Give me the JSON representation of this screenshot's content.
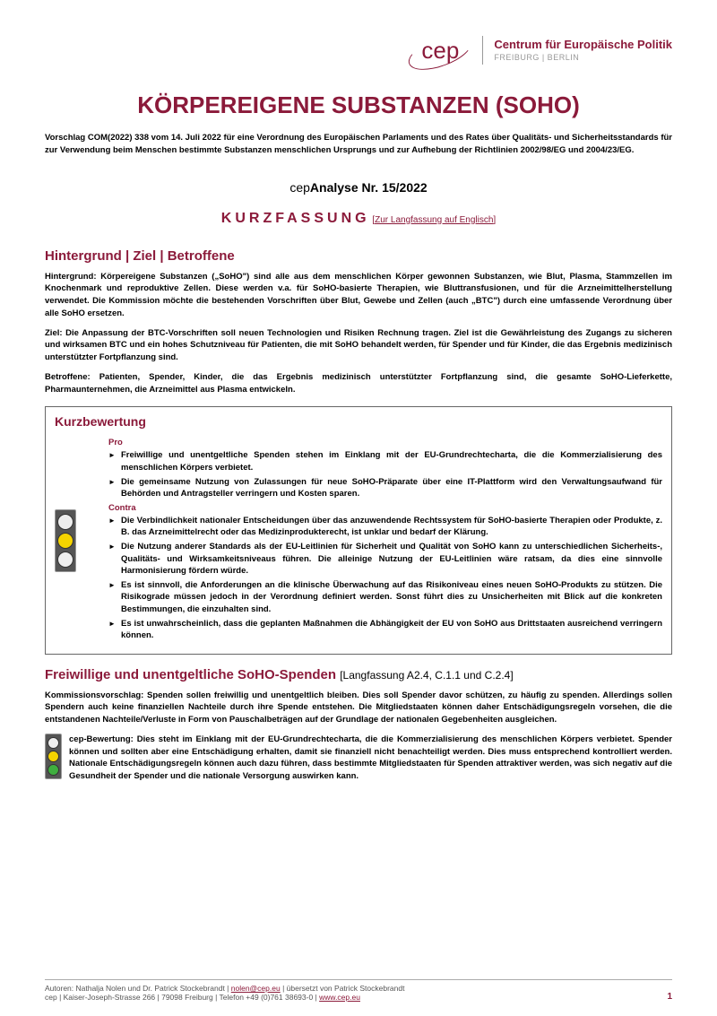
{
  "logo": {
    "brand": "cep",
    "name": "Centrum für Europäische Politik",
    "cities": "FREIBURG | BERLIN"
  },
  "title": "KÖRPEREIGENE SUBSTANZEN (SOHO)",
  "subtitle": "Vorschlag COM(2022) 338 vom 14. Juli 2022 für eine Verordnung des Europäischen Parlaments und des Rates über Qualitäts- und Sicherheitsstandards für zur Verwendung beim Menschen bestimmte Substanzen menschlichen Ursprungs und zur Aufhebung der Richtlinien 2002/98/EG und 2004/23/EG.",
  "analyse": {
    "prefix": "cep",
    "word": "Analyse",
    "nr": " Nr. 15/2022"
  },
  "kurzfassung": {
    "label": "KURZFASSUNG",
    "link": "[Zur Langfassung auf Englisch]"
  },
  "section1": {
    "heading": "Hintergrund | Ziel | Betroffene",
    "p1": "Hintergrund: Körpereigene Substanzen („SoHO\") sind alle aus dem menschlichen Körper gewonnen Substanzen, wie Blut, Plasma, Stammzellen im Knochenmark und reproduktive Zellen. Diese werden v.a. für SoHO-basierte Therapien, wie Bluttransfusionen, und für die Arzneimittelherstellung verwendet. Die Kommission möchte die bestehenden Vorschriften über Blut, Gewebe und Zellen (auch „BTC\") durch eine umfassende Verordnung über alle SoHO ersetzen.",
    "p2": "Ziel: Die Anpassung der BTC-Vorschriften soll neuen Technologien und Risiken Rechnung tragen. Ziel ist die Gewährleistung des Zugangs zu sicheren und wirksamen BTC und ein hohes Schutzniveau für Patienten, die mit SoHO behandelt werden, für Spender und für Kinder, die das Ergebnis medizinisch unterstützter Fortpflanzung sind.",
    "p3": "Betroffene: Patienten, Spender, Kinder, die das Ergebnis medizinisch unterstützter Fortpflanzung sind, die gesamte SoHO-Lieferkette, Pharmaunternehmen, die Arzneimittel aus Plasma entwickeln."
  },
  "eval": {
    "heading": "Kurzbewertung",
    "pro_label": "Pro",
    "contra_label": "Contra",
    "pro": [
      "Freiwillige und unentgeltliche Spenden stehen im Einklang mit der EU-Grundrechtecharta, die die Kommerzialisierung des menschlichen Körpers verbietet.",
      "Die gemeinsame Nutzung von Zulassungen für neue SoHO-Präparate über eine IT-Plattform wird den Verwaltungsaufwand für Behörden und Antragsteller verringern und Kosten sparen."
    ],
    "contra": [
      "Die Verbindlichkeit nationaler Entscheidungen über das anzuwendende Rechtssystem für SoHO-basierte Therapien oder Produkte, z. B. das Arzneimittelrecht oder das Medizinprodukterecht, ist unklar und bedarf der Klärung.",
      "Die Nutzung anderer Standards als der EU-Leitlinien für Sicherheit und Qualität von SoHO kann zu unterschiedlichen Sicherheits-, Qualitäts- und Wirksamkeitsniveaus führen. Die alleinige Nutzung der EU-Leitlinien wäre ratsam, da dies eine sinnvolle Harmonisierung fördern würde.",
      "Es ist sinnvoll, die Anforderungen an die klinische Überwachung auf das Risikoniveau eines neuen SoHO-Produkts zu stützen. Die Risikograde müssen jedoch in der Verordnung definiert werden. Sonst führt dies zu Unsicherheiten mit Blick auf die konkreten Bestimmungen, die einzuhalten sind.",
      "Es ist unwahrscheinlich, dass die geplanten Maßnahmen die Abhängigkeit der EU von SoHO aus Drittstaaten ausreichend verringern können."
    ]
  },
  "section2": {
    "heading": "Freiwillige und unentgeltliche SoHO-Spenden",
    "ref": "[Langfassung A2.4, C.1.1 und C.2.4]",
    "p1": "Kommissionsvorschlag: Spenden sollen freiwillig und unentgeltlich bleiben. Dies soll Spender davor schützen, zu häufig zu spenden. Allerdings sollen Spendern auch keine finanziellen Nachteile durch ihre Spende entstehen. Die Mitgliedstaaten können daher Entschädigungsregeln vorsehen, die die entstandenen Nachteile/Verluste in Form von Pauschalbeträgen auf der Grundlage der nationalen Gegebenheiten ausgleichen.",
    "p2": "cep-Bewertung: Dies steht im Einklang mit der EU-Grundrechtecharta, die die Kommerzialisierung des menschlichen Körpers verbietet. Spender können und sollten aber eine Entschädigung erhalten, damit sie finanziell nicht benachteiligt werden. Dies muss entsprechend kontrolliert werden. Nationale Entschädigungsregeln können auch dazu führen, dass bestimmte Mitgliedstaaten für Spenden attraktiver werden, was sich negativ auf die Gesundheit der Spender und die nationale Versorgung auswirken kann."
  },
  "footer": {
    "line1": "Autoren: Nathalja Nolen und Dr. Patrick Stockebrandt | ",
    "email": "nolen@cep.eu",
    "line1b": " | übersetzt von Patrick Stockebrandt",
    "line2": "cep | Kaiser-Joseph-Strasse 266 | 79098 Freiburg | Telefon +49 (0)761 38693-0 | ",
    "url": "www.cep.eu",
    "page": "1"
  }
}
